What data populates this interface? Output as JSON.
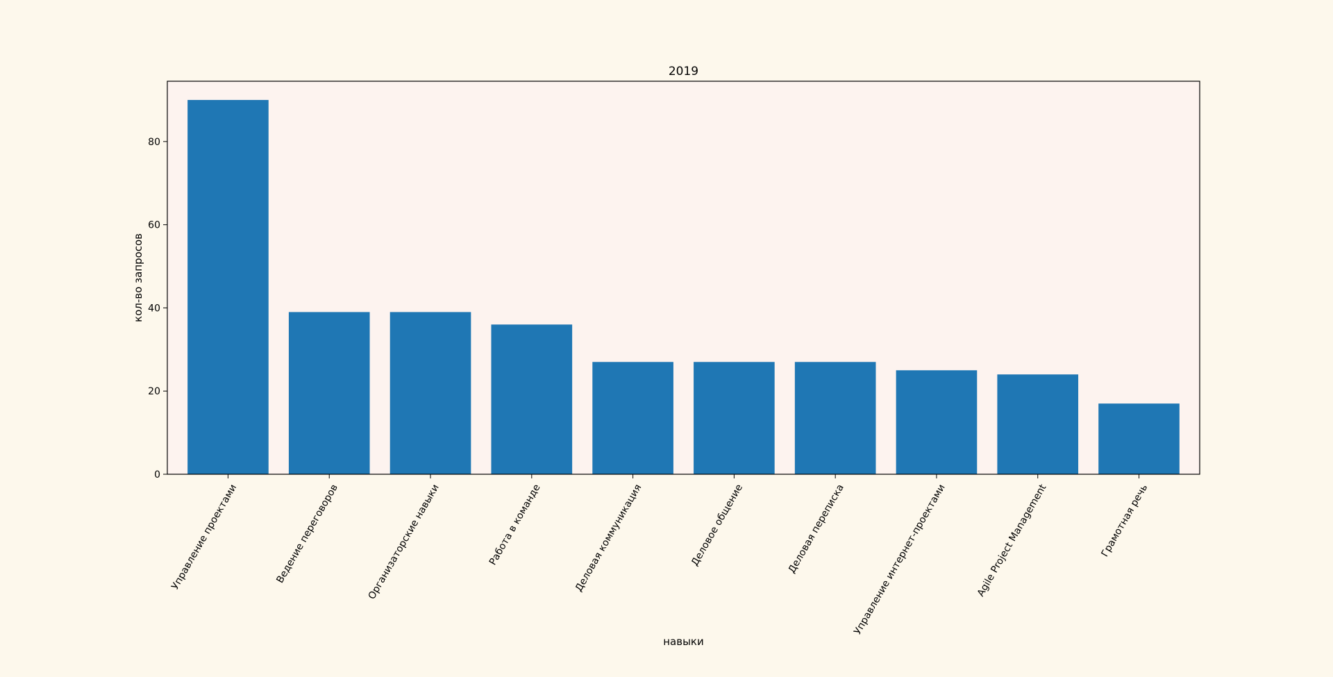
{
  "chart_data": {
    "type": "bar",
    "title": "2019",
    "xlabel": "навыки",
    "ylabel": "кол-во запросов",
    "categories": [
      "Управление проектами",
      "Ведение переговоров",
      "Организаторские навыки",
      "Работа в команде",
      "Деловая коммуникация",
      "Деловое общение",
      "Деловая переписка",
      "Управление интернет-проектами",
      "Agile Project Management",
      "Грамотная речь"
    ],
    "values": [
      90,
      39,
      39,
      36,
      27,
      27,
      27,
      25,
      24,
      17
    ],
    "ylim": [
      0,
      94.5
    ],
    "yticks": [
      0,
      20,
      40,
      60,
      80
    ],
    "grid": false,
    "colors": {
      "bar": "#1f77b4",
      "plot_background": "#fdf3ef",
      "figure_background": "#fdf8ec"
    }
  }
}
